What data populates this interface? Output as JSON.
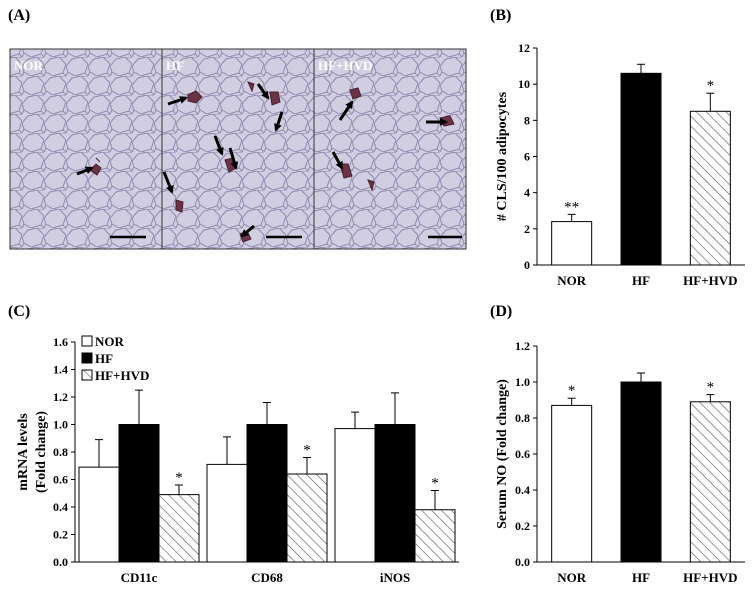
{
  "panels": {
    "a": {
      "letter": "(A)",
      "images": [
        {
          "label": "NOR"
        },
        {
          "label": "HF"
        },
        {
          "label": "HF+HVD"
        }
      ]
    },
    "b": {
      "letter": "(B)"
    },
    "c": {
      "letter": "(C)"
    },
    "d": {
      "letter": "(D)"
    }
  },
  "colors": {
    "nor": "#ffffff",
    "hf": "#000000",
    "hvd_hatch": "#555555",
    "micro_bg": "#c9c6dc",
    "micro_line": "#8a86a6",
    "micro_stain": "#5a2a3a"
  },
  "chart_data": [
    {
      "id": "b",
      "type": "bar",
      "ylabel": "# CLS/100 adipocytes",
      "ylim": [
        0,
        12
      ],
      "yticks": [
        0,
        2,
        4,
        6,
        8,
        10,
        12
      ],
      "categories": [
        "NOR",
        "HF",
        "HF+HVD"
      ],
      "values": [
        2.4,
        10.6,
        8.5
      ],
      "errors": [
        0.4,
        0.5,
        1.0
      ],
      "significance": [
        "**",
        "",
        "*"
      ],
      "fills": [
        "open",
        "solid",
        "hatched"
      ]
    },
    {
      "id": "c",
      "type": "bar",
      "ylabel": "mRNA levels\n(Fold change)",
      "ylim": [
        0,
        1.6
      ],
      "yticks": [
        "0.0",
        "0.2",
        "0.4",
        "0.6",
        "0.8",
        "1.0",
        "1.2",
        "1.4",
        "1.6"
      ],
      "categories": [
        "CD11c",
        "CD68",
        "iNOS"
      ],
      "legend_position": "top-left",
      "series": [
        {
          "name": "NOR",
          "fill": "open",
          "values": [
            0.69,
            0.71,
            0.97
          ],
          "errors": [
            0.2,
            0.2,
            0.12
          ],
          "significance": [
            "",
            "",
            ""
          ]
        },
        {
          "name": "HF",
          "fill": "solid",
          "values": [
            1.0,
            1.0,
            1.0
          ],
          "errors": [
            0.25,
            0.16,
            0.23
          ],
          "significance": [
            "",
            "",
            ""
          ]
        },
        {
          "name": "HF+HVD",
          "fill": "hatched",
          "values": [
            0.49,
            0.64,
            0.38
          ],
          "errors": [
            0.07,
            0.12,
            0.14
          ],
          "significance": [
            "*",
            "*",
            "*"
          ]
        }
      ]
    },
    {
      "id": "d",
      "type": "bar",
      "ylabel": "Serum NO (Fold change)",
      "ylim": [
        0,
        1.2
      ],
      "yticks": [
        "0.0",
        "0.2",
        "0.4",
        "0.6",
        "0.8",
        "1.0",
        "1.2"
      ],
      "categories": [
        "NOR",
        "HF",
        "HF+HVD"
      ],
      "values": [
        0.87,
        1.0,
        0.89
      ],
      "errors": [
        0.04,
        0.05,
        0.04
      ],
      "significance": [
        "*",
        "",
        "*"
      ],
      "fills": [
        "open",
        "solid",
        "hatched"
      ]
    }
  ]
}
